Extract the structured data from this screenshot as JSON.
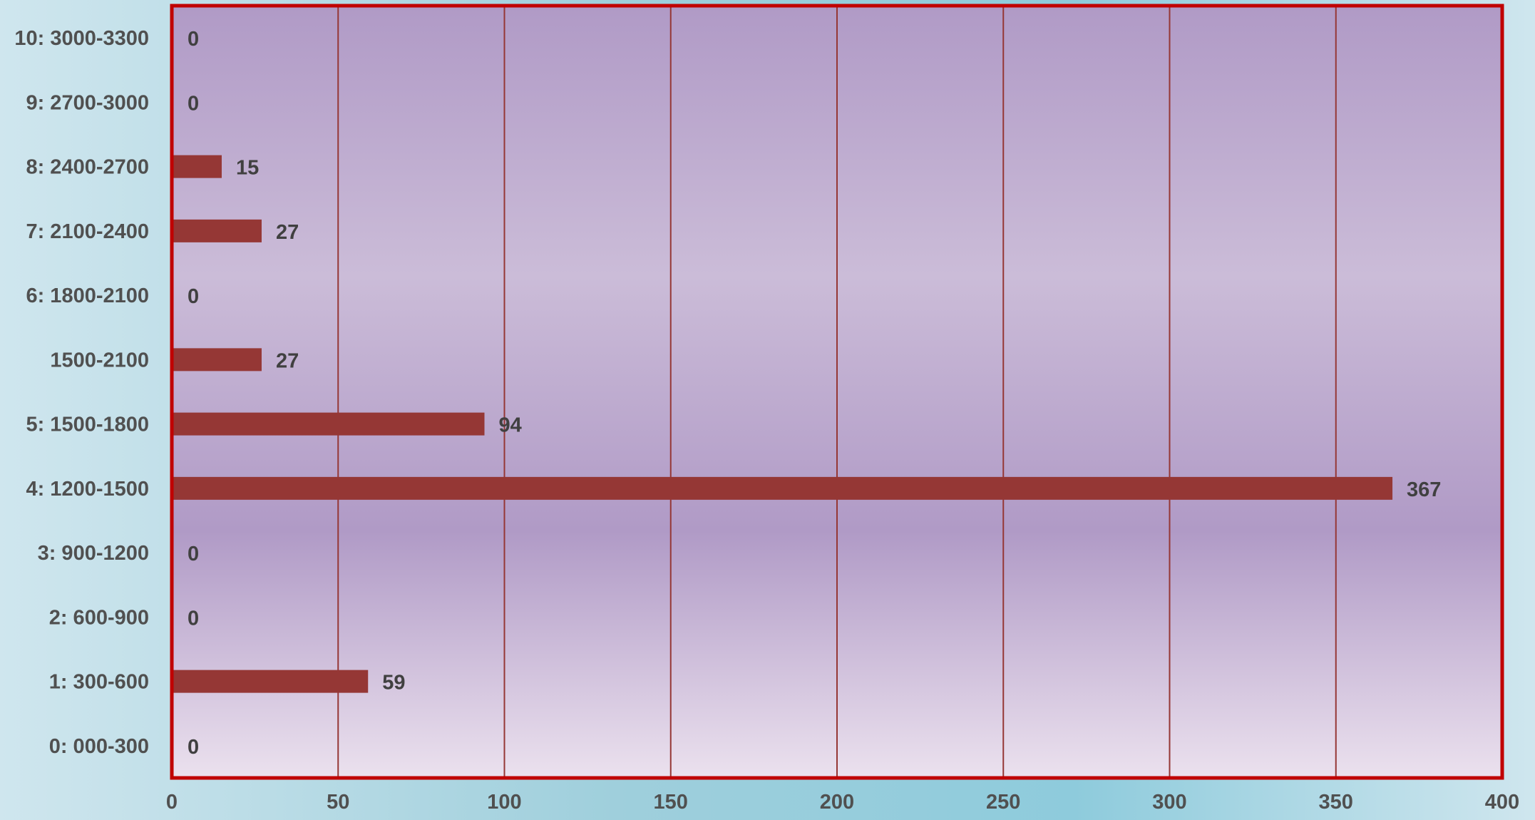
{
  "chart_data": {
    "type": "bar",
    "orientation": "horizontal",
    "categories": [
      "0: 000-300",
      "1: 300-600",
      "2: 600-900",
      "3: 900-1200",
      "4: 1200-1500",
      "5: 1500-1800",
      "1500-2100",
      "6: 1800-2100",
      "7: 2100-2400",
      "8: 2400-2700",
      "9: 2700-3000",
      "10: 3000-3300"
    ],
    "values": [
      0,
      59,
      0,
      0,
      367,
      94,
      27,
      0,
      27,
      15,
      0,
      0
    ],
    "xlim": [
      0,
      400
    ],
    "x_ticks": [
      0,
      50,
      100,
      150,
      200,
      250,
      300,
      350,
      400
    ],
    "grid": true,
    "data_labels": true,
    "colors": {
      "bar": "#953735",
      "plot_border": "#c00000",
      "grid": "#953735",
      "plot_bg_light": "#ebe1ee",
      "plot_bg_mid": "#b09ac6"
    }
  }
}
